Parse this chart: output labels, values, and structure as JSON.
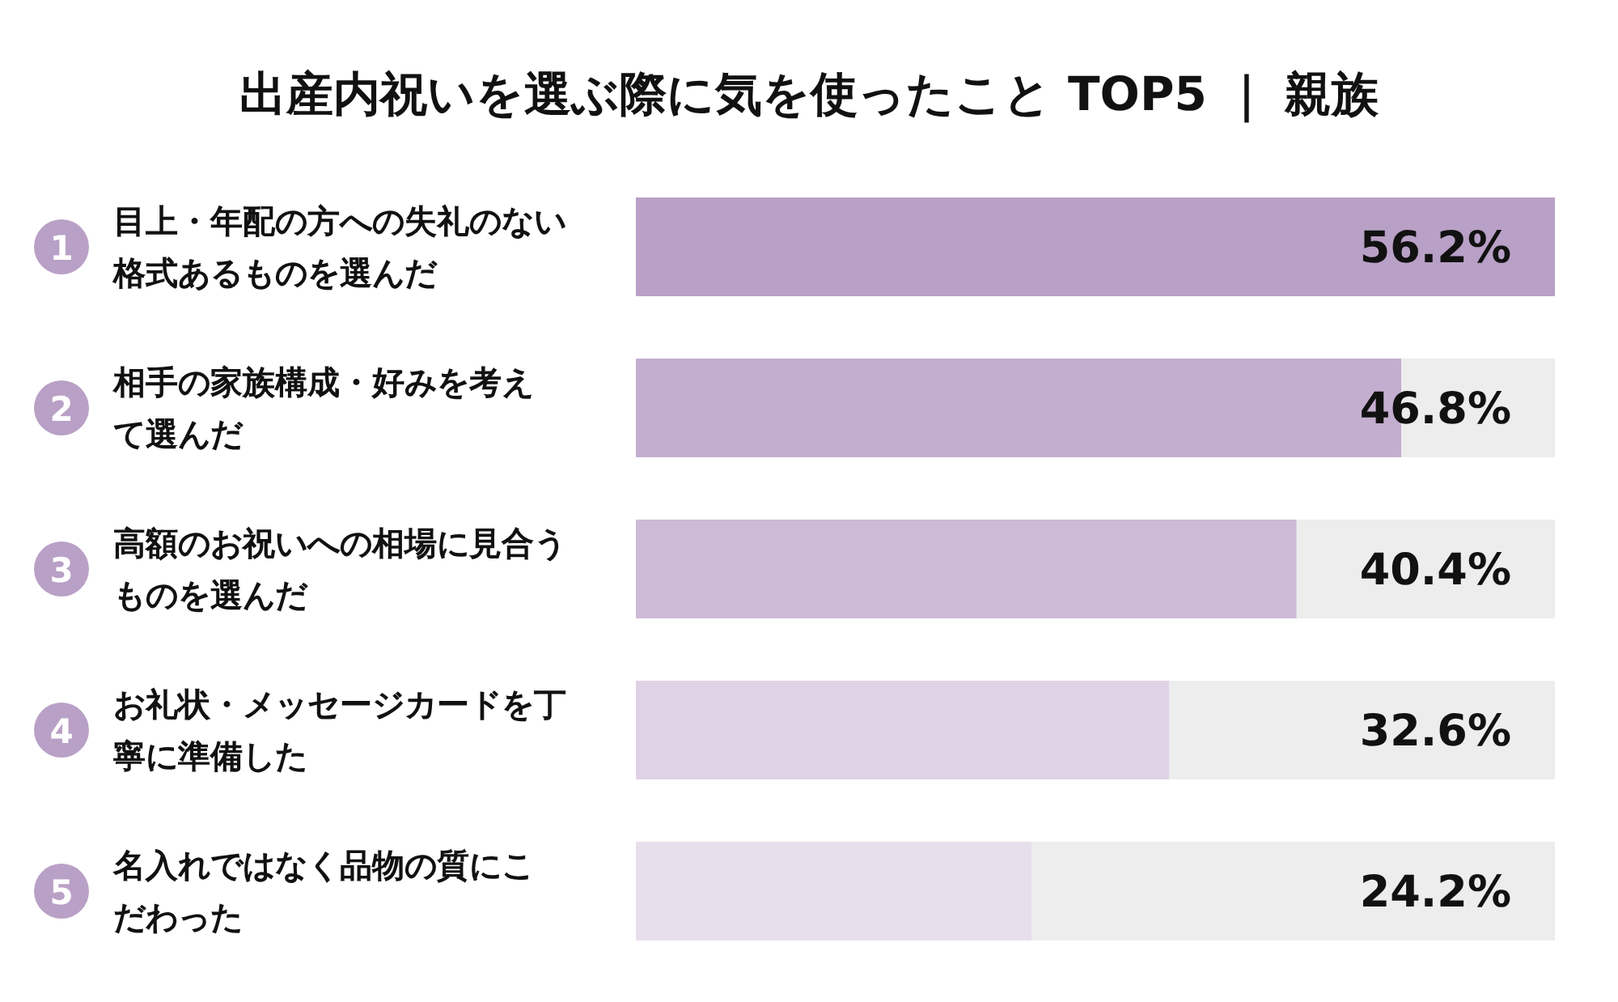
{
  "chart_data": {
    "type": "bar",
    "orientation": "horizontal",
    "title": "出産内祝いを選ぶ際に気を使ったこと TOP5 ｜ 親族",
    "categories": [
      "目上・年配の方への失礼のない格式あるものを選んだ",
      "相手の家族構成・好みを考えて選んだ",
      "高額のお祝いへの相場に見合うものを選んだ",
      "お礼状・メッセージカードを丁寧に準備した",
      "名入れではなく品物の質にこだわった"
    ],
    "values": [
      56.2,
      46.8,
      40.4,
      32.6,
      24.2
    ],
    "value_labels": [
      "56.2%",
      "46.8%",
      "40.4%",
      "32.6%",
      "24.2%"
    ],
    "colors": [
      "#b9a0c6",
      "#c4aecf",
      "#cdbad8",
      "#e0d2e6",
      "#e8dfed"
    ],
    "annotations": [
      "1",
      "2",
      "3",
      "4",
      "5"
    ]
  }
}
